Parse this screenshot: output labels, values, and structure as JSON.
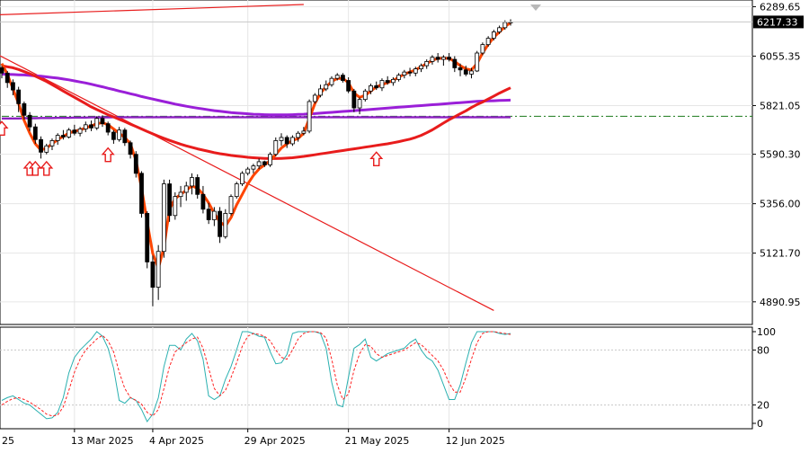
{
  "chart_data": [
    {
      "type": "candlestick",
      "panel": "price",
      "x_labels": [
        "25",
        "13 Mar 2025",
        "4 Apr 2025",
        "29 Apr 2025",
        "21 May 2025",
        "12 Jun 2025"
      ],
      "y_ticks": [
        "6289.65",
        "6055.35",
        "5821.05",
        "5590.30",
        "5356.00",
        "5121.70",
        "4890.95"
      ],
      "ylim": [
        4805,
        6300
      ],
      "current_price": "6217.33",
      "candles": [
        [
          6000,
          6010,
          5950,
          5975
        ],
        [
          5975,
          5985,
          5905,
          5930
        ],
        [
          5930,
          5945,
          5870,
          5895
        ],
        [
          5895,
          5910,
          5790,
          5830
        ],
        [
          5830,
          5840,
          5755,
          5775
        ],
        [
          5775,
          5790,
          5700,
          5720
        ],
        [
          5720,
          5735,
          5640,
          5660
        ],
        [
          5660,
          5675,
          5570,
          5600
        ],
        [
          5600,
          5640,
          5590,
          5630
        ],
        [
          5630,
          5665,
          5610,
          5655
        ],
        [
          5655,
          5690,
          5635,
          5680
        ],
        [
          5680,
          5705,
          5660,
          5672
        ],
        [
          5672,
          5715,
          5665,
          5705
        ],
        [
          5705,
          5730,
          5680,
          5690
        ],
        [
          5690,
          5720,
          5675,
          5710
        ],
        [
          5710,
          5745,
          5695,
          5730
        ],
        [
          5730,
          5750,
          5700,
          5715
        ],
        [
          5715,
          5770,
          5705,
          5760
        ],
        [
          5760,
          5775,
          5720,
          5735
        ],
        [
          5735,
          5745,
          5680,
          5695
        ],
        [
          5695,
          5705,
          5640,
          5660
        ],
        [
          5660,
          5720,
          5650,
          5705
        ],
        [
          5705,
          5715,
          5630,
          5645
        ],
        [
          5645,
          5655,
          5570,
          5590
        ],
        [
          5590,
          5605,
          5480,
          5500
        ],
        [
          5500,
          5510,
          5290,
          5310
        ],
        [
          5310,
          5320,
          5050,
          5080
        ],
        [
          5080,
          5110,
          4870,
          4960
        ],
        [
          4960,
          5160,
          4900,
          5130
        ],
        [
          5130,
          5470,
          5100,
          5450
        ],
        [
          5450,
          5470,
          5270,
          5300
        ],
        [
          5300,
          5410,
          5280,
          5390
        ],
        [
          5390,
          5440,
          5340,
          5410
        ],
        [
          5410,
          5460,
          5370,
          5440
        ],
        [
          5440,
          5500,
          5400,
          5480
        ],
        [
          5480,
          5495,
          5380,
          5400
        ],
        [
          5400,
          5440,
          5310,
          5330
        ],
        [
          5330,
          5360,
          5260,
          5280
        ],
        [
          5280,
          5340,
          5250,
          5320
        ],
        [
          5320,
          5340,
          5170,
          5200
        ],
        [
          5200,
          5330,
          5190,
          5310
        ],
        [
          5310,
          5400,
          5300,
          5390
        ],
        [
          5390,
          5460,
          5380,
          5450
        ],
        [
          5450,
          5510,
          5440,
          5500
        ],
        [
          5500,
          5530,
          5490,
          5520
        ],
        [
          5520,
          5545,
          5500,
          5535
        ],
        [
          5535,
          5570,
          5520,
          5555
        ],
        [
          5555,
          5560,
          5530,
          5540
        ],
        [
          5540,
          5600,
          5530,
          5590
        ],
        [
          5590,
          5670,
          5580,
          5655
        ],
        [
          5655,
          5690,
          5630,
          5670
        ],
        [
          5670,
          5680,
          5620,
          5640
        ],
        [
          5640,
          5680,
          5630,
          5670
        ],
        [
          5670,
          5700,
          5650,
          5690
        ],
        [
          5690,
          5720,
          5680,
          5700
        ],
        [
          5700,
          5850,
          5690,
          5840
        ],
        [
          5840,
          5880,
          5830,
          5870
        ],
        [
          5870,
          5920,
          5860,
          5900
        ],
        [
          5900,
          5940,
          5890,
          5920
        ],
        [
          5920,
          5960,
          5910,
          5950
        ],
        [
          5950,
          5975,
          5940,
          5965
        ],
        [
          5965,
          5975,
          5930,
          5940
        ],
        [
          5940,
          5955,
          5880,
          5890
        ],
        [
          5890,
          5900,
          5790,
          5810
        ],
        [
          5810,
          5860,
          5780,
          5850
        ],
        [
          5850,
          5900,
          5840,
          5890
        ],
        [
          5890,
          5925,
          5875,
          5915
        ],
        [
          5915,
          5935,
          5895,
          5905
        ],
        [
          5905,
          5950,
          5890,
          5940
        ],
        [
          5940,
          5960,
          5920,
          5930
        ],
        [
          5930,
          5955,
          5915,
          5945
        ],
        [
          5945,
          5975,
          5935,
          5965
        ],
        [
          5965,
          5990,
          5950,
          5980
        ],
        [
          5980,
          6000,
          5960,
          5975
        ],
        [
          5975,
          6005,
          5960,
          5995
        ],
        [
          5995,
          6020,
          5980,
          6010
        ],
        [
          6010,
          6040,
          5995,
          6030
        ],
        [
          6030,
          6060,
          6015,
          6050
        ],
        [
          6050,
          6070,
          6025,
          6040
        ],
        [
          6040,
          6060,
          6010,
          6050
        ],
        [
          6050,
          6070,
          6030,
          6040
        ],
        [
          6040,
          6055,
          5980,
          6000
        ],
        [
          6000,
          6020,
          5960,
          5990
        ],
        [
          5990,
          6010,
          5960,
          5970
        ],
        [
          5970,
          6000,
          5950,
          5985
        ],
        [
          5985,
          6080,
          5980,
          6070
        ],
        [
          6070,
          6120,
          6060,
          6110
        ],
        [
          6110,
          6150,
          6100,
          6140
        ],
        [
          6140,
          6180,
          6130,
          6170
        ],
        [
          6170,
          6200,
          6160,
          6190
        ],
        [
          6190,
          6225,
          6180,
          6215
        ],
        [
          6215,
          6230,
          6200,
          6217
        ]
      ],
      "series": [
        {
          "name": "",
          "color": "#ff4500",
          "role": "fast-ma",
          "values": [
            6020,
            5970,
            5900,
            5830,
            5750,
            5690,
            5640,
            5610,
            5620,
            5640,
            5660,
            5675,
            5690,
            5700,
            5705,
            5715,
            5725,
            5735,
            5740,
            5730,
            5710,
            5690,
            5670,
            5640,
            5560,
            5430,
            5270,
            5120,
            5050,
            5150,
            5330,
            5380,
            5400,
            5420,
            5440,
            5430,
            5400,
            5360,
            5310,
            5270,
            5250,
            5290,
            5350,
            5400,
            5450,
            5490,
            5520,
            5540,
            5560,
            5590,
            5620,
            5640,
            5655,
            5665,
            5690,
            5760,
            5830,
            5880,
            5910,
            5935,
            5950,
            5950,
            5930,
            5880,
            5860,
            5870,
            5890,
            5910,
            5920,
            5930,
            5940,
            5955,
            5970,
            5980,
            5990,
            6005,
            6020,
            6035,
            6045,
            6045,
            6045,
            6030,
            6010,
            5995,
            5990,
            6020,
            6070,
            6110,
            6145,
            6170,
            6195,
            6215
          ]
        },
        {
          "name": "",
          "color": "#e81c1c",
          "role": "medium-ma",
          "values": [
            6010,
            6005,
            6000,
            5992,
            5982,
            5972,
            5960,
            5948,
            5935,
            5920,
            5905,
            5890,
            5875,
            5860,
            5845,
            5830,
            5815,
            5802,
            5790,
            5778,
            5767,
            5756,
            5745,
            5733,
            5722,
            5710,
            5698,
            5687,
            5676,
            5666,
            5656,
            5647,
            5638,
            5630,
            5623,
            5616,
            5610,
            5604,
            5598,
            5593,
            5589,
            5585,
            5582,
            5579,
            5576,
            5574,
            5572,
            5571,
            5570,
            5570,
            5571,
            5572,
            5574,
            5577,
            5580,
            5584,
            5588,
            5592,
            5596,
            5600,
            5604,
            5608,
            5612,
            5616,
            5620,
            5624,
            5628,
            5632,
            5636,
            5640,
            5645,
            5650,
            5656,
            5662,
            5670,
            5680,
            5692,
            5706,
            5722,
            5738,
            5754,
            5768,
            5782,
            5796,
            5812,
            5826,
            5838,
            5852,
            5866,
            5880,
            5893,
            5905
          ]
        },
        {
          "name": "",
          "color": "#9a1fd8",
          "role": "slow-ma",
          "values": [
            5970,
            5969,
            5968,
            5967,
            5966,
            5964,
            5962,
            5960,
            5957,
            5954,
            5951,
            5947,
            5943,
            5938,
            5933,
            5928,
            5922,
            5916,
            5910,
            5903,
            5897,
            5890,
            5884,
            5877,
            5871,
            5864,
            5858,
            5852,
            5846,
            5840,
            5834,
            5828,
            5823,
            5818,
            5813,
            5809,
            5805,
            5801,
            5797,
            5794,
            5791,
            5788,
            5786,
            5784,
            5782,
            5780,
            5779,
            5778,
            5777,
            5777,
            5777,
            5777,
            5778,
            5779,
            5780,
            5782,
            5783,
            5785,
            5787,
            5789,
            5791,
            5793,
            5795,
            5797,
            5799,
            5801,
            5803,
            5805,
            5807,
            5809,
            5811,
            5813,
            5815,
            5817,
            5819,
            5821,
            5823,
            5825,
            5827,
            5829,
            5831,
            5833,
            5835,
            5837,
            5839,
            5841,
            5842,
            5843,
            5844,
            5845,
            5846,
            5847
          ]
        },
        {
          "name": "",
          "color": "#8a1fc0",
          "role": "flat-ma",
          "values": [
            5760,
            5760,
            5760,
            5760,
            5761,
            5761,
            5761,
            5762,
            5762,
            5762,
            5763,
            5763,
            5763,
            5764,
            5764,
            5764,
            5765,
            5765,
            5765,
            5765,
            5766,
            5766,
            5766,
            5766,
            5766,
            5766,
            5766,
            5766,
            5766,
            5766,
            5766,
            5766,
            5766,
            5766,
            5766,
            5766,
            5766,
            5766,
            5766,
            5766,
            5766,
            5766,
            5766,
            5766,
            5766,
            5766,
            5766,
            5766,
            5766,
            5766,
            5766,
            5766,
            5766,
            5766,
            5766,
            5766,
            5766,
            5766,
            5766,
            5766,
            5766,
            5766,
            5766,
            5766,
            5766,
            5766,
            5766,
            5766,
            5766,
            5766,
            5766,
            5766,
            5766,
            5766,
            5766,
            5766,
            5766,
            5766,
            5766,
            5766,
            5766,
            5766,
            5766,
            5766,
            5766,
            5766,
            5766,
            5766,
            5766,
            5766,
            5766,
            5766
          ]
        }
      ],
      "trendlines": [
        {
          "color": "#e81c1c",
          "from": [
            -2,
            6080
          ],
          "to": [
            88,
            4850
          ]
        },
        {
          "color": "#e81c1c",
          "from": [
            -2,
            6250
          ],
          "to": [
            54,
            6300
          ]
        }
      ],
      "h_level": {
        "value": 5770,
        "color": "#1a7a1a",
        "style": "dash-dot"
      },
      "arrows": [
        {
          "index": 0,
          "price": 5745
        },
        {
          "index": 5,
          "price": 5555
        },
        {
          "index": 6,
          "price": 5555
        },
        {
          "index": 8,
          "price": 5555
        },
        {
          "index": 19,
          "price": 5620
        },
        {
          "index": 67,
          "price": 5600
        }
      ]
    },
    {
      "type": "line",
      "panel": "stochastic",
      "y_ticks": [
        "100",
        "80",
        "20",
        "0"
      ],
      "ylim": [
        0,
        100
      ],
      "levels": [
        80,
        20
      ],
      "series": [
        {
          "name": "",
          "color": "#2ab0b0",
          "style": "solid",
          "values": [
            25,
            28,
            30,
            26,
            22,
            20,
            15,
            10,
            5,
            6,
            12,
            28,
            55,
            72,
            80,
            86,
            92,
            100,
            95,
            82,
            60,
            25,
            22,
            28,
            25,
            15,
            2,
            10,
            28,
            62,
            85,
            85,
            80,
            92,
            98,
            90,
            70,
            30,
            26,
            30,
            48,
            62,
            80,
            100,
            100,
            98,
            95,
            94,
            78,
            65,
            66,
            75,
            98,
            100,
            100,
            100,
            100,
            98,
            82,
            45,
            20,
            18,
            50,
            82,
            86,
            92,
            72,
            68,
            72,
            76,
            78,
            80,
            82,
            88,
            92,
            80,
            72,
            68,
            58,
            42,
            26,
            26,
            42,
            66,
            88,
            100,
            100,
            100,
            100,
            98,
            97,
            98
          ]
        },
        {
          "name": "",
          "color": "#ff2020",
          "style": "dashed",
          "values": [
            20,
            24,
            27,
            28,
            26,
            23,
            19,
            15,
            10,
            8,
            9,
            18,
            36,
            56,
            70,
            80,
            86,
            92,
            96,
            90,
            78,
            56,
            38,
            28,
            25,
            21,
            12,
            8,
            15,
            38,
            62,
            78,
            83,
            88,
            92,
            94,
            82,
            60,
            38,
            30,
            36,
            50,
            66,
            84,
            95,
            98,
            97,
            95,
            90,
            80,
            72,
            70,
            80,
            92,
            98,
            100,
            100,
            99,
            93,
            70,
            42,
            26,
            32,
            58,
            76,
            86,
            84,
            76,
            72,
            74,
            76,
            78,
            80,
            84,
            88,
            86,
            80,
            74,
            68,
            58,
            44,
            34,
            34,
            50,
            70,
            88,
            98,
            100,
            100,
            99,
            98,
            97
          ]
        }
      ]
    }
  ]
}
